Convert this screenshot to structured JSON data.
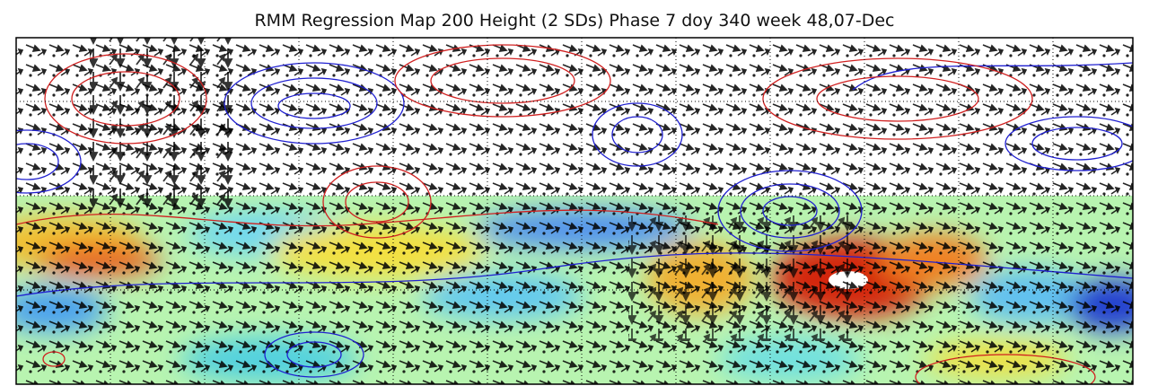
{
  "title": "RMM Regression Map 200 Height (2 SDs) Phase 7 doy 340 week 48,07-Dec"
}
